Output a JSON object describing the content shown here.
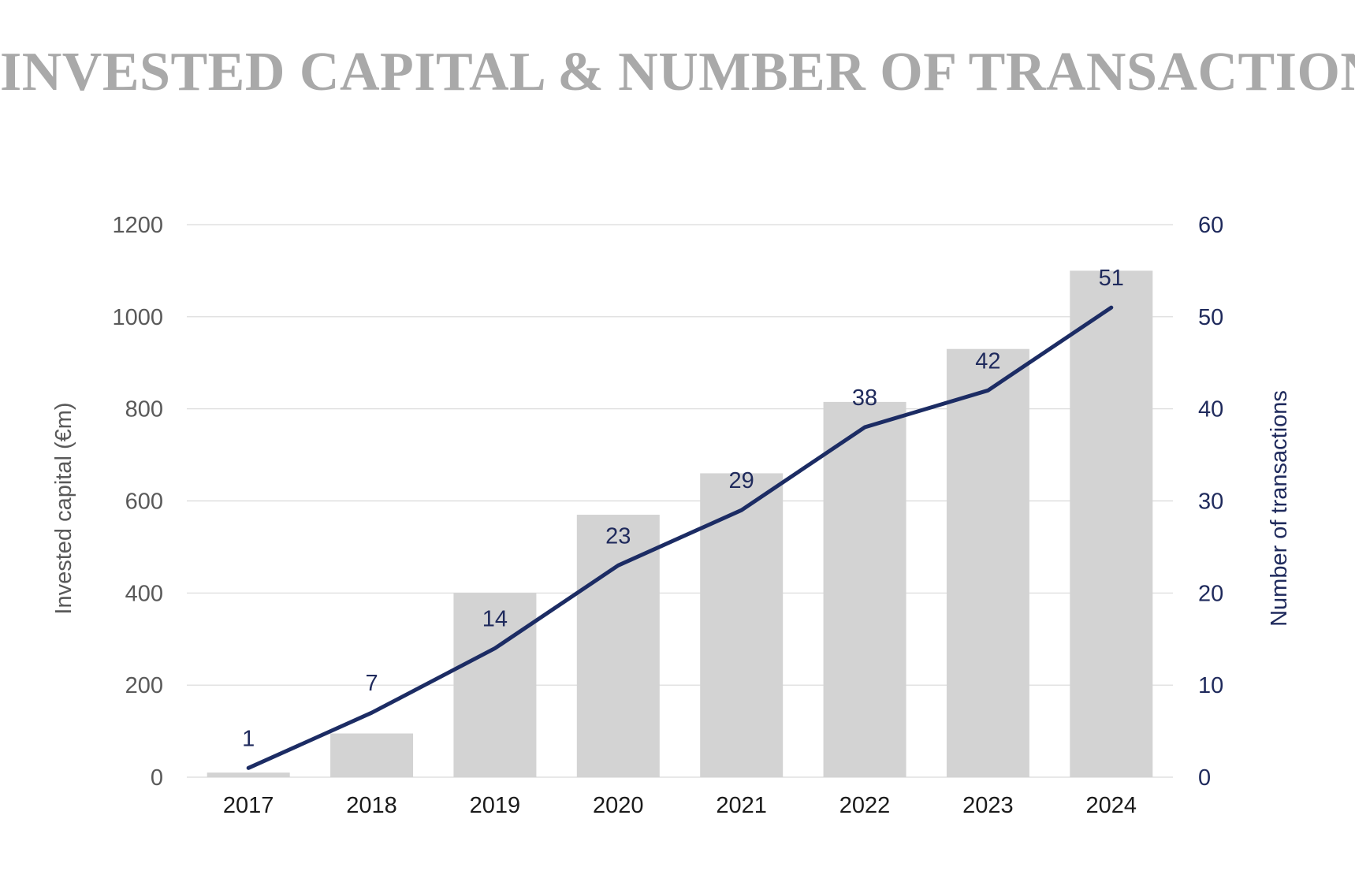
{
  "chart_data": {
    "type": "bar",
    "title": "INVESTED CAPITAL & NUMBER OF TRANSACTIONS",
    "categories": [
      "2017",
      "2018",
      "2019",
      "2020",
      "2021",
      "2022",
      "2023",
      "2024"
    ],
    "series": [
      {
        "type": "bar",
        "axis": "left",
        "values": [
          10,
          95,
          400,
          570,
          660,
          815,
          930,
          1100
        ]
      },
      {
        "type": "line",
        "axis": "right",
        "values": [
          1,
          7,
          14,
          23,
          29,
          38,
          42,
          51
        ]
      }
    ],
    "ylabel": "Invested capital (€m)",
    "ylabel_right": "Number of transactions",
    "ylim": [
      0,
      1200
    ],
    "ylim_right": [
      0,
      60
    ],
    "yticks": [
      "0",
      "200",
      "400",
      "600",
      "800",
      "1000",
      "1200"
    ],
    "yticks_right": [
      "0",
      "10",
      "20",
      "30",
      "40",
      "50",
      "60"
    ],
    "grid": true,
    "legend": "none",
    "colors": {
      "bar": "#d3d3d3",
      "line": "#1c2c64",
      "title": "#a9a9a9",
      "grid": "#d9d9d9"
    }
  }
}
